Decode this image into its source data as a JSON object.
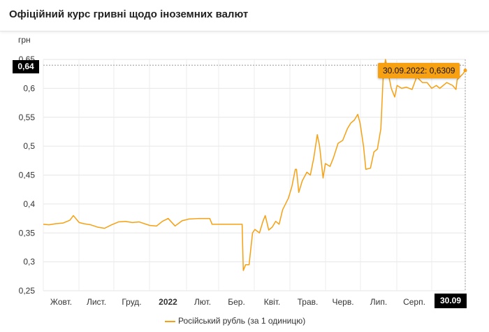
{
  "header": {
    "title": "Офіційний курс гривні щодо іноземних валют"
  },
  "chart_data": {
    "type": "line",
    "title": "Офіційний курс гривні щодо іноземних валют",
    "ylabel": "грн",
    "ylim": [
      0.25,
      0.65
    ],
    "yticks": [
      "0,25",
      "0,3",
      "0,35",
      "0,4",
      "0,45",
      "0,5",
      "0,55",
      "0,6",
      "0,65"
    ],
    "xlim_days": [
      0,
      365
    ],
    "xticks": [
      {
        "label": "Жовт.",
        "bold": false
      },
      {
        "label": "Лист.",
        "bold": false
      },
      {
        "label": "Груд.",
        "bold": false
      },
      {
        "label": "2022",
        "bold": true
      },
      {
        "label": "Лют.",
        "bold": false
      },
      {
        "label": "Бер.",
        "bold": false
      },
      {
        "label": "Квіт.",
        "bold": false
      },
      {
        "label": "Трав.",
        "bold": false
      },
      {
        "label": "Черв.",
        "bold": false
      },
      {
        "label": "Лип.",
        "bold": false
      },
      {
        "label": "Серп.",
        "bold": false
      }
    ],
    "series": [
      {
        "name": "Російський рубль (за 1 одиницю)",
        "color": "#f7a012",
        "points": [
          [
            0,
            0.365
          ],
          [
            5,
            0.364
          ],
          [
            11,
            0.366
          ],
          [
            17,
            0.367
          ],
          [
            23,
            0.372
          ],
          [
            26,
            0.38
          ],
          [
            31,
            0.368
          ],
          [
            35,
            0.366
          ],
          [
            41,
            0.364
          ],
          [
            47,
            0.36
          ],
          [
            53,
            0.358
          ],
          [
            59,
            0.364
          ],
          [
            65,
            0.369
          ],
          [
            71,
            0.37
          ],
          [
            77,
            0.368
          ],
          [
            83,
            0.369
          ],
          [
            92,
            0.363
          ],
          [
            98,
            0.362
          ],
          [
            103,
            0.37
          ],
          [
            108,
            0.375
          ],
          [
            114,
            0.362
          ],
          [
            120,
            0.371
          ],
          [
            126,
            0.374
          ],
          [
            135,
            0.375
          ],
          [
            144,
            0.375
          ],
          [
            146,
            0.365
          ],
          [
            172,
            0.365
          ],
          [
            173,
            0.285
          ],
          [
            175,
            0.295
          ],
          [
            178,
            0.295
          ],
          [
            181,
            0.35
          ],
          [
            183,
            0.356
          ],
          [
            187,
            0.35
          ],
          [
            190,
            0.37
          ],
          [
            192,
            0.38
          ],
          [
            195,
            0.355
          ],
          [
            198,
            0.36
          ],
          [
            201,
            0.37
          ],
          [
            204,
            0.365
          ],
          [
            207,
            0.39
          ],
          [
            212,
            0.41
          ],
          [
            215,
            0.43
          ],
          [
            218,
            0.46
          ],
          [
            219,
            0.46
          ],
          [
            221,
            0.42
          ],
          [
            224,
            0.44
          ],
          [
            228,
            0.455
          ],
          [
            231,
            0.45
          ],
          [
            234,
            0.48
          ],
          [
            237,
            0.52
          ],
          [
            239,
            0.5
          ],
          [
            242,
            0.445
          ],
          [
            244,
            0.47
          ],
          [
            248,
            0.465
          ],
          [
            251,
            0.48
          ],
          [
            255,
            0.505
          ],
          [
            259,
            0.51
          ],
          [
            263,
            0.53
          ],
          [
            266,
            0.54
          ],
          [
            269,
            0.545
          ],
          [
            272,
            0.555
          ],
          [
            274,
            0.54
          ],
          [
            277,
            0.5
          ],
          [
            279,
            0.46
          ],
          [
            283,
            0.462
          ],
          [
            286,
            0.49
          ],
          [
            289,
            0.495
          ],
          [
            292,
            0.53
          ],
          [
            294,
            0.62
          ],
          [
            296,
            0.65
          ],
          [
            299,
            0.62
          ],
          [
            301,
            0.6
          ],
          [
            304,
            0.585
          ],
          [
            306,
            0.605
          ],
          [
            310,
            0.6
          ],
          [
            314,
            0.602
          ],
          [
            319,
            0.598
          ],
          [
            323,
            0.62
          ],
          [
            328,
            0.61
          ],
          [
            332,
            0.61
          ],
          [
            336,
            0.6
          ],
          [
            340,
            0.605
          ],
          [
            343,
            0.6
          ],
          [
            349,
            0.61
          ],
          [
            354,
            0.605
          ],
          [
            357,
            0.598
          ],
          [
            358,
            0.615
          ],
          [
            363,
            0.625
          ],
          [
            365,
            0.6309
          ]
        ]
      }
    ],
    "legend": "bottom-center",
    "grid": true,
    "crosshair": {
      "y_label": "0,64",
      "x_label": "30.09"
    },
    "tooltip": "30.09.2022: 0,6309"
  }
}
